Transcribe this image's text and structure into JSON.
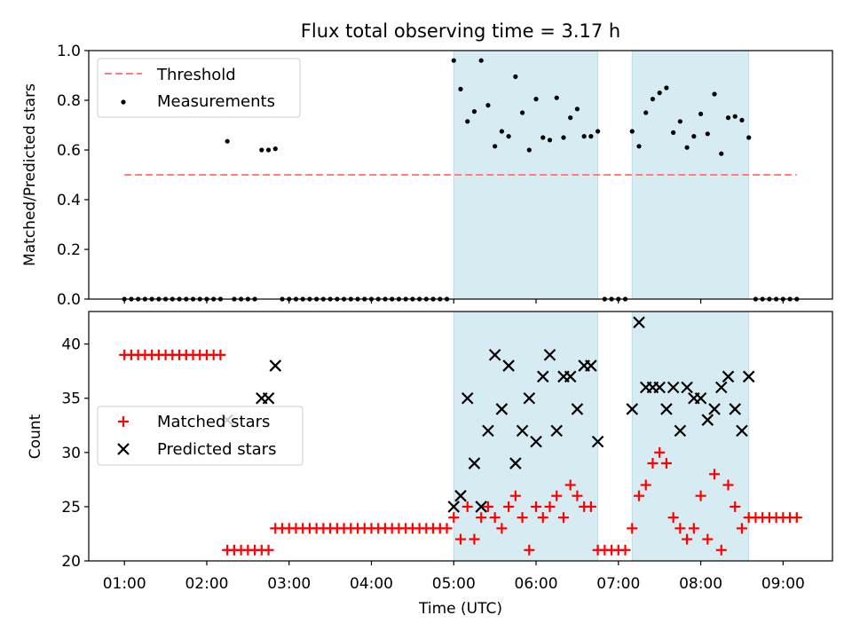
{
  "title": "Flux total observing time = 3.17 h",
  "xlabel": "Time (UTC)",
  "x_ticks": [
    "01:00",
    "02:00",
    "03:00",
    "04:00",
    "05:00",
    "06:00",
    "07:00",
    "08:00",
    "09:00"
  ],
  "top_panel": {
    "ylabel": "Matched/Predicted stars",
    "y_ticks": [
      "0.0",
      "0.2",
      "0.4",
      "0.6",
      "0.8",
      "1.0"
    ],
    "legend": {
      "threshold": "Threshold",
      "measurements": "Measurements"
    }
  },
  "bottom_panel": {
    "ylabel": "Count",
    "y_ticks": [
      "20",
      "25",
      "30",
      "35",
      "40"
    ],
    "legend": {
      "matched": "Matched stars",
      "predicted": "Predicted stars"
    }
  },
  "colors": {
    "threshold": "#ff7f7f",
    "measurement": "#000000",
    "matched": "#ff0000",
    "predicted": "#000000",
    "shade": "#add8e6"
  },
  "chart_data": [
    {
      "type": "scatter",
      "title": "Flux total observing time = 3.17 h",
      "xlabel": "",
      "ylabel": "Matched/Predicted stars",
      "ylim": [
        0,
        1
      ],
      "xlim": [
        "00:34",
        "09:36"
      ],
      "legend_position": "top-left",
      "grid": false,
      "threshold": {
        "y": 0.5,
        "x_range": [
          "01:00",
          "09:10"
        ]
      },
      "shaded_intervals": [
        [
          "05:00",
          "06:45"
        ],
        [
          "07:10",
          "08:35"
        ]
      ],
      "series": [
        {
          "name": "Measurements",
          "points": [
            [
              "01:00",
              0
            ],
            [
              "01:05",
              0
            ],
            [
              "01:10",
              0
            ],
            [
              "01:15",
              0
            ],
            [
              "01:20",
              0
            ],
            [
              "01:25",
              0
            ],
            [
              "01:30",
              0
            ],
            [
              "01:35",
              0
            ],
            [
              "01:40",
              0
            ],
            [
              "01:45",
              0
            ],
            [
              "01:50",
              0
            ],
            [
              "01:55",
              0
            ],
            [
              "02:00",
              0
            ],
            [
              "02:05",
              0
            ],
            [
              "02:10",
              0
            ],
            [
              "02:15",
              0.635
            ],
            [
              "02:20",
              0
            ],
            [
              "02:25",
              0
            ],
            [
              "02:30",
              0
            ],
            [
              "02:35",
              0
            ],
            [
              "02:40",
              0.6
            ],
            [
              "02:45",
              0.6
            ],
            [
              "02:50",
              0.605
            ],
            [
              "02:55",
              0
            ],
            [
              "03:00",
              0
            ],
            [
              "03:05",
              0
            ],
            [
              "03:10",
              0
            ],
            [
              "03:15",
              0
            ],
            [
              "03:20",
              0
            ],
            [
              "03:25",
              0
            ],
            [
              "03:30",
              0
            ],
            [
              "03:35",
              0
            ],
            [
              "03:40",
              0
            ],
            [
              "03:45",
              0
            ],
            [
              "03:50",
              0
            ],
            [
              "03:55",
              0
            ],
            [
              "04:00",
              0
            ],
            [
              "04:05",
              0
            ],
            [
              "04:10",
              0
            ],
            [
              "04:15",
              0
            ],
            [
              "04:20",
              0
            ],
            [
              "04:25",
              0
            ],
            [
              "04:30",
              0
            ],
            [
              "04:35",
              0
            ],
            [
              "04:40",
              0
            ],
            [
              "04:45",
              0
            ],
            [
              "04:50",
              0
            ],
            [
              "04:55",
              0
            ],
            [
              "05:00",
              0.96
            ],
            [
              "05:05",
              0.845
            ],
            [
              "05:10",
              0.715
            ],
            [
              "05:15",
              0.755
            ],
            [
              "05:20",
              0.96
            ],
            [
              "05:25",
              0.78
            ],
            [
              "05:30",
              0.615
            ],
            [
              "05:35",
              0.675
            ],
            [
              "05:40",
              0.655
            ],
            [
              "05:45",
              0.895
            ],
            [
              "05:50",
              0.75
            ],
            [
              "05:55",
              0.6
            ],
            [
              "06:00",
              0.805
            ],
            [
              "06:05",
              0.65
            ],
            [
              "06:10",
              0.64
            ],
            [
              "06:15",
              0.81
            ],
            [
              "06:20",
              0.65
            ],
            [
              "06:25",
              0.73
            ],
            [
              "06:30",
              0.765
            ],
            [
              "06:35",
              0.655
            ],
            [
              "06:40",
              0.655
            ],
            [
              "06:45",
              0.675
            ],
            [
              "06:50",
              0
            ],
            [
              "06:55",
              0
            ],
            [
              "07:00",
              0
            ],
            [
              "07:05",
              0
            ],
            [
              "07:10",
              0.675
            ],
            [
              "07:15",
              0.615
            ],
            [
              "07:20",
              0.75
            ],
            [
              "07:25",
              0.805
            ],
            [
              "07:30",
              0.83
            ],
            [
              "07:35",
              0.85
            ],
            [
              "07:40",
              0.67
            ],
            [
              "07:45",
              0.715
            ],
            [
              "07:50",
              0.61
            ],
            [
              "07:55",
              0.655
            ],
            [
              "08:00",
              0.745
            ],
            [
              "08:05",
              0.665
            ],
            [
              "08:10",
              0.825
            ],
            [
              "08:15",
              0.585
            ],
            [
              "08:20",
              0.73
            ],
            [
              "08:25",
              0.735
            ],
            [
              "08:30",
              0.72
            ],
            [
              "08:35",
              0.65
            ],
            [
              "08:40",
              0
            ],
            [
              "08:45",
              0
            ],
            [
              "08:50",
              0
            ],
            [
              "08:55",
              0
            ],
            [
              "09:00",
              0
            ],
            [
              "09:05",
              0
            ],
            [
              "09:10",
              0
            ]
          ]
        }
      ]
    },
    {
      "type": "scatter",
      "title": "",
      "xlabel": "Time (UTC)",
      "ylabel": "Count",
      "ylim": [
        20,
        43
      ],
      "xlim": [
        "00:34",
        "09:36"
      ],
      "legend_position": "center-left",
      "grid": false,
      "shaded_intervals": [
        [
          "05:00",
          "06:45"
        ],
        [
          "07:10",
          "08:35"
        ]
      ],
      "series": [
        {
          "name": "Matched stars",
          "marker": "+",
          "points": [
            [
              "01:00",
              39
            ],
            [
              "01:05",
              39
            ],
            [
              "01:10",
              39
            ],
            [
              "01:15",
              39
            ],
            [
              "01:20",
              39
            ],
            [
              "01:25",
              39
            ],
            [
              "01:30",
              39
            ],
            [
              "01:35",
              39
            ],
            [
              "01:40",
              39
            ],
            [
              "01:45",
              39
            ],
            [
              "01:50",
              39
            ],
            [
              "01:55",
              39
            ],
            [
              "02:00",
              39
            ],
            [
              "02:05",
              39
            ],
            [
              "02:10",
              39
            ],
            [
              "02:15",
              21
            ],
            [
              "02:20",
              21
            ],
            [
              "02:25",
              21
            ],
            [
              "02:30",
              21
            ],
            [
              "02:35",
              21
            ],
            [
              "02:40",
              21
            ],
            [
              "02:45",
              21
            ],
            [
              "02:50",
              23
            ],
            [
              "02:55",
              23
            ],
            [
              "03:00",
              23
            ],
            [
              "03:05",
              23
            ],
            [
              "03:10",
              23
            ],
            [
              "03:15",
              23
            ],
            [
              "03:20",
              23
            ],
            [
              "03:25",
              23
            ],
            [
              "03:30",
              23
            ],
            [
              "03:35",
              23
            ],
            [
              "03:40",
              23
            ],
            [
              "03:45",
              23
            ],
            [
              "03:50",
              23
            ],
            [
              "03:55",
              23
            ],
            [
              "04:00",
              23
            ],
            [
              "04:05",
              23
            ],
            [
              "04:10",
              23
            ],
            [
              "04:15",
              23
            ],
            [
              "04:20",
              23
            ],
            [
              "04:25",
              23
            ],
            [
              "04:30",
              23
            ],
            [
              "04:35",
              23
            ],
            [
              "04:40",
              23
            ],
            [
              "04:45",
              23
            ],
            [
              "04:50",
              23
            ],
            [
              "04:55",
              23
            ],
            [
              "05:00",
              24
            ],
            [
              "05:05",
              22
            ],
            [
              "05:10",
              25
            ],
            [
              "05:15",
              22
            ],
            [
              "05:20",
              24
            ],
            [
              "05:25",
              25
            ],
            [
              "05:30",
              24
            ],
            [
              "05:35",
              23
            ],
            [
              "05:40",
              25
            ],
            [
              "05:45",
              26
            ],
            [
              "05:50",
              24
            ],
            [
              "05:55",
              21
            ],
            [
              "06:00",
              25
            ],
            [
              "06:05",
              24
            ],
            [
              "06:10",
              25
            ],
            [
              "06:15",
              26
            ],
            [
              "06:20",
              24
            ],
            [
              "06:25",
              27
            ],
            [
              "06:30",
              26
            ],
            [
              "06:35",
              25
            ],
            [
              "06:40",
              25
            ],
            [
              "06:45",
              21
            ],
            [
              "06:50",
              21
            ],
            [
              "06:55",
              21
            ],
            [
              "07:00",
              21
            ],
            [
              "07:05",
              21
            ],
            [
              "07:10",
              23
            ],
            [
              "07:15",
              26
            ],
            [
              "07:20",
              27
            ],
            [
              "07:25",
              29
            ],
            [
              "07:30",
              30
            ],
            [
              "07:35",
              29
            ],
            [
              "07:40",
              24
            ],
            [
              "07:45",
              23
            ],
            [
              "07:50",
              22
            ],
            [
              "07:55",
              23
            ],
            [
              "08:00",
              26
            ],
            [
              "08:05",
              22
            ],
            [
              "08:10",
              28
            ],
            [
              "08:15",
              21
            ],
            [
              "08:20",
              27
            ],
            [
              "08:25",
              25
            ],
            [
              "08:30",
              23
            ],
            [
              "08:35",
              24
            ],
            [
              "08:40",
              24
            ],
            [
              "08:45",
              24
            ],
            [
              "08:50",
              24
            ],
            [
              "08:55",
              24
            ],
            [
              "09:00",
              24
            ],
            [
              "09:05",
              24
            ],
            [
              "09:10",
              24
            ]
          ]
        },
        {
          "name": "Predicted stars",
          "marker": "x",
          "points": [
            [
              "02:15",
              33
            ],
            [
              "02:40",
              35
            ],
            [
              "02:45",
              35
            ],
            [
              "02:50",
              38
            ],
            [
              "05:00",
              25
            ],
            [
              "05:05",
              26
            ],
            [
              "05:10",
              35
            ],
            [
              "05:15",
              29
            ],
            [
              "05:20",
              25
            ],
            [
              "05:25",
              32
            ],
            [
              "05:30",
              39
            ],
            [
              "05:35",
              34
            ],
            [
              "05:40",
              38
            ],
            [
              "05:45",
              29
            ],
            [
              "05:50",
              32
            ],
            [
              "05:55",
              35
            ],
            [
              "06:00",
              31
            ],
            [
              "06:05",
              37
            ],
            [
              "06:10",
              39
            ],
            [
              "06:15",
              32
            ],
            [
              "06:20",
              37
            ],
            [
              "06:25",
              37
            ],
            [
              "06:30",
              34
            ],
            [
              "06:35",
              38
            ],
            [
              "06:40",
              38
            ],
            [
              "06:45",
              31
            ],
            [
              "07:10",
              34
            ],
            [
              "07:15",
              42
            ],
            [
              "07:20",
              36
            ],
            [
              "07:25",
              36
            ],
            [
              "07:30",
              36
            ],
            [
              "07:35",
              34
            ],
            [
              "07:40",
              36
            ],
            [
              "07:45",
              32
            ],
            [
              "07:50",
              36
            ],
            [
              "07:55",
              35
            ],
            [
              "08:00",
              35
            ],
            [
              "08:05",
              33
            ],
            [
              "08:10",
              34
            ],
            [
              "08:15",
              36
            ],
            [
              "08:20",
              37
            ],
            [
              "08:25",
              34
            ],
            [
              "08:30",
              32
            ],
            [
              "08:35",
              37
            ]
          ]
        }
      ]
    }
  ]
}
